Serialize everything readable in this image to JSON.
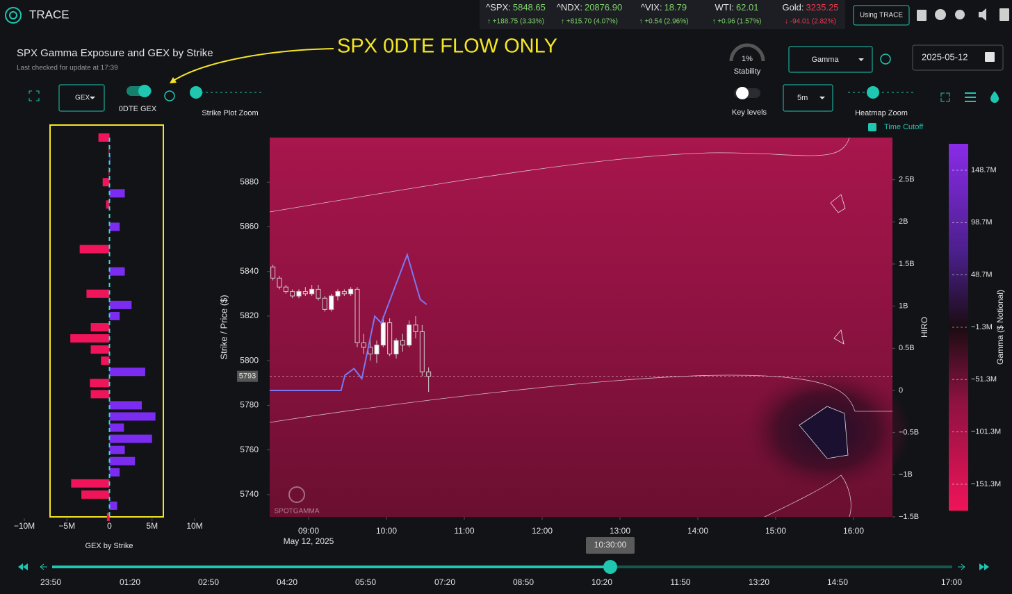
{
  "header": {
    "app_name": "TRACE",
    "button": "Using TRACE",
    "tickers": [
      {
        "symbol": "^SPX:",
        "price": "5848.65",
        "change": "↑ +188.75 (3.33%)",
        "direction": "up"
      },
      {
        "symbol": "^NDX:",
        "price": "20876.90",
        "change": "↑ +815.70 (4.07%)",
        "direction": "up"
      },
      {
        "symbol": "^VIX:",
        "price": "18.79",
        "change": "↑ +0.54 (2.96%)",
        "direction": "up"
      },
      {
        "symbol": "WTI:",
        "price": "62.01",
        "change": "↑ +0.96 (1.57%)",
        "direction": "up"
      },
      {
        "symbol": "Gold:",
        "price": "3235.25",
        "change": "↓ -94.01 (2.82%)",
        "direction": "down"
      }
    ]
  },
  "panel": {
    "title": "SPX Gamma Exposure and GEX by Strike",
    "subtitle": "Last checked for update at 17:39",
    "annotation": "SPX 0DTE FLOW ONLY"
  },
  "controls": {
    "gex_select": "GEX",
    "odte_toggle": "0DTE GEX",
    "strike_zoom": "Strike Plot Zoom",
    "stability_value": "1%",
    "stability": "Stability",
    "gamma_select": "Gamma",
    "date": "2025-05-12",
    "key_levels": "Key levels",
    "interval_select": "5m",
    "heatmap_zoom": "Heatmap Zoom",
    "time_cutoff": "Time Cutoff"
  },
  "gex_chart": {
    "type": "bar",
    "title": "GEX by Strike",
    "color_positive": "#7b2cf0",
    "color_negative": "#f0145a",
    "xlim": [
      -10,
      10
    ],
    "xticks": [
      {
        "value": -10,
        "label": "−10M"
      },
      {
        "value": -5,
        "label": "−5M"
      },
      0,
      {
        "value": 5,
        "label": "5M"
      },
      {
        "value": 10,
        "label": "10M"
      }
    ],
    "strikes": [
      5900,
      5895,
      5890,
      5885,
      5880,
      5875,
      5870,
      5865,
      5860,
      5855,
      5850,
      5845,
      5840,
      5835,
      5830,
      5825,
      5820,
      5815,
      5810,
      5805,
      5800,
      5795,
      5790,
      5785,
      5780,
      5775,
      5770,
      5765,
      5760,
      5755,
      5750,
      5745,
      5740,
      5735,
      5730
    ],
    "values": [
      -1.3,
      -0.1,
      0.1,
      -0.1,
      -0.8,
      1.8,
      -0.4,
      0,
      1.2,
      0,
      -3.5,
      0,
      1.8,
      0,
      -2.7,
      2.6,
      1.2,
      -2.2,
      -4.6,
      -2.2,
      -1.0,
      4.2,
      -2.3,
      -2.2,
      3.8,
      5.4,
      1.7,
      5.0,
      1.8,
      3.0,
      1.2,
      -4.5,
      -3.3,
      0.9,
      -0.3
    ]
  },
  "heatmap": {
    "type": "candlestick",
    "ylabel": "Strike / Price ($)",
    "y2label": "HIRO",
    "date": "May 12, 2025",
    "xlim": [
      510,
      990
    ],
    "xticks": [
      {
        "value": 540,
        "label": "09:00"
      },
      {
        "value": 600,
        "label": "10:00"
      },
      {
        "value": 660,
        "label": "11:00"
      },
      {
        "value": 720,
        "label": "12:00"
      },
      {
        "value": 780,
        "label": "13:00"
      },
      {
        "value": 840,
        "label": "14:00"
      },
      {
        "value": 900,
        "label": "15:00"
      },
      {
        "value": 960,
        "label": "16:00"
      }
    ],
    "ylim": [
      5730,
      5900
    ],
    "yticks": [
      5740,
      5760,
      5780,
      5800,
      5820,
      5840,
      5860,
      5880
    ],
    "y2lim": [
      -1.5,
      3
    ],
    "y2ticks": [
      {
        "value": -1.5,
        "label": "−1.5B"
      },
      {
        "value": -1,
        "label": "−1B"
      },
      {
        "value": -0.5,
        "label": "−0.5B"
      },
      0,
      {
        "value": 0.5,
        "label": "0.5B"
      },
      {
        "value": 1,
        "label": "1B"
      },
      {
        "value": 1.5,
        "label": "1.5B"
      },
      {
        "value": 2,
        "label": "2B"
      },
      {
        "value": 2.5,
        "label": "2.5B"
      }
    ],
    "current_price": 5793,
    "candles": {
      "x": [
        510,
        515,
        520,
        525,
        530,
        535,
        540,
        545,
        550,
        555,
        560,
        565,
        570,
        575,
        580,
        585,
        590,
        595,
        600,
        605,
        610,
        615,
        620,
        625,
        630
      ],
      "open": [
        5842,
        5837,
        5833,
        5831,
        5829,
        5831,
        5830,
        5832,
        5828,
        5823,
        5829,
        5831,
        5830,
        5832,
        5808,
        5806,
        5803,
        5807,
        5817,
        5803,
        5809,
        5807,
        5816,
        5813,
        5795
      ],
      "high": [
        5843,
        5838,
        5834,
        5832,
        5832,
        5833,
        5834,
        5834,
        5829,
        5830,
        5832,
        5832,
        5833,
        5833,
        5812,
        5810,
        5809,
        5820,
        5819,
        5810,
        5812,
        5818,
        5820,
        5816,
        5797
      ],
      "low": [
        5836,
        5832,
        5830,
        5828,
        5828,
        5829,
        5829,
        5827,
        5822,
        5822,
        5827,
        5829,
        5829,
        5806,
        5803,
        5800,
        5799,
        5806,
        5802,
        5801,
        5804,
        5806,
        5810,
        5793,
        5786
      ],
      "close": [
        5837,
        5833,
        5831,
        5829,
        5831,
        5830,
        5832,
        5828,
        5823,
        5829,
        5831,
        5830,
        5832,
        5808,
        5806,
        5803,
        5807,
        5817,
        5803,
        5809,
        5807,
        5816,
        5813,
        5795,
        5793
      ]
    },
    "hiro": {
      "name": "HIRO",
      "color": "#7a78f2",
      "axis": "y2",
      "x": [
        510,
        565,
        568,
        575,
        581,
        591,
        596,
        616,
        626,
        631
      ],
      "values": [
        0,
        0,
        0.18,
        0.26,
        0.14,
        0.88,
        0.8,
        1.61,
        1.08,
        1.02
      ]
    }
  },
  "colorbar": {
    "title": "Gamma ($ Notional)",
    "ylim": [
      -176.5,
      173.9
    ],
    "yticks": [
      {
        "value": 148.7,
        "label": "148.7M"
      },
      {
        "value": 98.7,
        "label": "98.7M"
      },
      {
        "value": 48.7,
        "label": "48.7M"
      },
      {
        "value": -1.3,
        "label": "−1.3M"
      },
      {
        "value": -51.3,
        "label": "−51.3M"
      },
      {
        "value": -101.3,
        "label": "−101.3M"
      },
      {
        "value": -151.3,
        "label": "−151.3M"
      }
    ]
  },
  "watermark": "SPOTGAMMA",
  "timeline": {
    "current": "10:30:00",
    "labels": [
      "23:50",
      "01:20",
      "02:50",
      "04:20",
      "05:50",
      "07:20",
      "08:50",
      "10:20",
      "11:50",
      "13:20",
      "14:50",
      "17:00"
    ]
  }
}
